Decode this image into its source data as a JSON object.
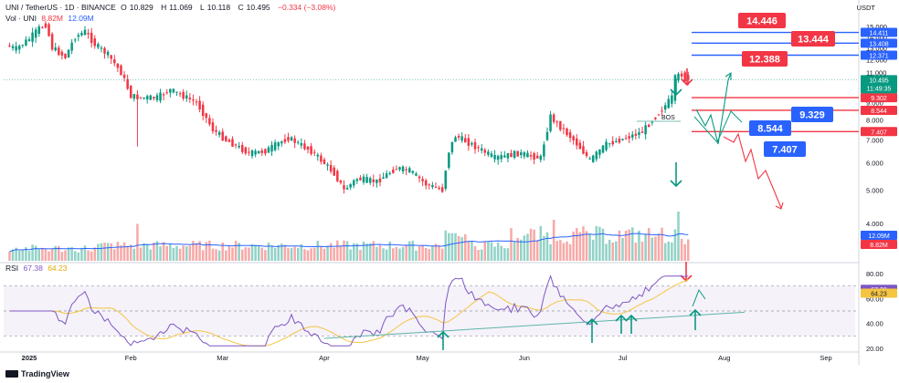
{
  "header": {
    "symbol": "UNI / TetherUS · 1D · BINANCE",
    "open_label": "O",
    "open": "10.829",
    "high_label": "H",
    "high": "11.069",
    "low_label": "L",
    "low": "10.118",
    "close_label": "C",
    "close": "10.495",
    "change": "−0.334 (−3.08%)",
    "vol_label": "Vol · UNI",
    "vol_value_1": "8.82M",
    "vol_value_2": "12.09M",
    "rsi_label": "RSI",
    "rsi_value_1": "67.38",
    "rsi_value_2": "64.23"
  },
  "quote_unit": "USDT",
  "branding": "TradingView",
  "colors": {
    "up": "#089981",
    "down": "#f23645",
    "vol_up": "#92d2c7",
    "vol_down": "#f7a9a7",
    "vol_ma": "#2962ff",
    "rsi": "#7e57c2",
    "rsi_ma": "#f5c542",
    "level_blue": "#2962ff",
    "level_red": "#f23645",
    "trend": "#5fb4a8",
    "arrow_green": "#089981",
    "arrow_red": "#f23645"
  },
  "chart_data": {
    "type": "candlestick",
    "title": "UNI / TetherUS · 1D · BINANCE",
    "price_axis": {
      "ticks": [
        "15.000",
        "14.000",
        "13.000",
        "12.000",
        "11.000",
        "10.000",
        "9.000",
        "8.000",
        "7.000",
        "6.000",
        "5.000",
        "4.000"
      ],
      "scale": "log"
    },
    "time_axis": {
      "ticks": [
        "2025",
        "Feb",
        "Mar",
        "Apr",
        "May",
        "Jun",
        "Jul",
        "Aug",
        "Sep"
      ]
    },
    "rsi_axis": {
      "ticks": [
        "80.00",
        "60.00",
        "40.00",
        "20.00"
      ],
      "range": [
        20,
        80
      ],
      "bands": [
        70,
        30
      ]
    },
    "price_key_points": [
      {
        "date": "2024-12-26",
        "price": 13.2
      },
      {
        "date": "2024-12-29",
        "price": 12.9
      },
      {
        "date": "2025-01-02",
        "price": 13.8
      },
      {
        "date": "2025-01-05",
        "price": 14.8
      },
      {
        "date": "2025-01-07",
        "price": 15.2
      },
      {
        "date": "2025-01-09",
        "price": 13.0
      },
      {
        "date": "2025-01-13",
        "price": 12.2
      },
      {
        "date": "2025-01-16",
        "price": 14.0
      },
      {
        "date": "2025-01-19",
        "price": 14.5
      },
      {
        "date": "2025-01-22",
        "price": 13.3
      },
      {
        "date": "2025-01-26",
        "price": 12.4
      },
      {
        "date": "2025-01-30",
        "price": 11.0
      },
      {
        "date": "2025-02-02",
        "price": 9.4
      },
      {
        "date": "2025-02-05",
        "price": 9.3
      },
      {
        "date": "2025-02-10",
        "price": 9.3
      },
      {
        "date": "2025-02-14",
        "price": 9.8
      },
      {
        "date": "2025-02-18",
        "price": 9.4
      },
      {
        "date": "2025-02-22",
        "price": 9.0
      },
      {
        "date": "2025-02-27",
        "price": 7.5
      },
      {
        "date": "2025-03-03",
        "price": 7.0
      },
      {
        "date": "2025-03-10",
        "price": 6.4
      },
      {
        "date": "2025-03-15",
        "price": 6.5
      },
      {
        "date": "2025-03-22",
        "price": 7.1
      },
      {
        "date": "2025-03-29",
        "price": 6.5
      },
      {
        "date": "2025-04-05",
        "price": 5.6
      },
      {
        "date": "2025-04-08",
        "price": 5.0
      },
      {
        "date": "2025-04-12",
        "price": 5.4
      },
      {
        "date": "2025-04-18",
        "price": 5.3
      },
      {
        "date": "2025-04-24",
        "price": 5.8
      },
      {
        "date": "2025-04-28",
        "price": 5.7
      },
      {
        "date": "2025-05-03",
        "price": 5.2
      },
      {
        "date": "2025-05-08",
        "price": 5.0
      },
      {
        "date": "2025-05-10",
        "price": 6.5
      },
      {
        "date": "2025-05-12",
        "price": 7.2
      },
      {
        "date": "2025-05-18",
        "price": 6.7
      },
      {
        "date": "2025-05-24",
        "price": 6.2
      },
      {
        "date": "2025-05-31",
        "price": 6.4
      },
      {
        "date": "2025-06-07",
        "price": 6.2
      },
      {
        "date": "2025-06-10",
        "price": 8.2
      },
      {
        "date": "2025-06-12",
        "price": 7.8
      },
      {
        "date": "2025-06-17",
        "price": 7.0
      },
      {
        "date": "2025-06-22",
        "price": 6.1
      },
      {
        "date": "2025-06-27",
        "price": 6.8
      },
      {
        "date": "2025-07-03",
        "price": 7.1
      },
      {
        "date": "2025-07-08",
        "price": 7.4
      },
      {
        "date": "2025-07-11",
        "price": 8.0
      },
      {
        "date": "2025-07-14",
        "price": 8.6
      },
      {
        "date": "2025-07-17",
        "price": 9.3
      },
      {
        "date": "2025-07-18",
        "price": 10.6
      },
      {
        "date": "2025-07-20",
        "price": 10.9
      },
      {
        "date": "2025-07-21",
        "price": 10.495
      }
    ],
    "volume_series": [
      {
        "name": "8.82M",
        "color": "vol"
      },
      {
        "name": "12.09M",
        "color": "ma"
      }
    ],
    "rsi_series": [
      {
        "name": "67.38"
      },
      {
        "name": "64.23"
      }
    ],
    "levels": [
      {
        "price": 14.411,
        "label": "14.411",
        "color": "blue"
      },
      {
        "price": 13.408,
        "label": "13.408",
        "color": "blue"
      },
      {
        "price": 12.371,
        "label": "12.371",
        "color": "blue"
      },
      {
        "price": 9.302,
        "label": "9.302",
        "color": "red"
      },
      {
        "price": 8.544,
        "label": "8.544",
        "color": "red"
      },
      {
        "price": 7.407,
        "label": "7.407",
        "color": "red"
      }
    ],
    "callouts": [
      {
        "text": "14.446",
        "color": "red"
      },
      {
        "text": "13.444",
        "color": "red"
      },
      {
        "text": "12.388",
        "color": "red"
      },
      {
        "text": "9.329",
        "color": "blue"
      },
      {
        "text": "8.544",
        "color": "blue"
      },
      {
        "text": "7.407",
        "color": "blue"
      }
    ],
    "bos_label": "BOS",
    "last_price_label": "10.495",
    "countdown": "11:49:35",
    "vol_badges": [
      "12.09M",
      "8.82M"
    ],
    "rsi_badges": [
      "67.38",
      "64.23"
    ]
  }
}
